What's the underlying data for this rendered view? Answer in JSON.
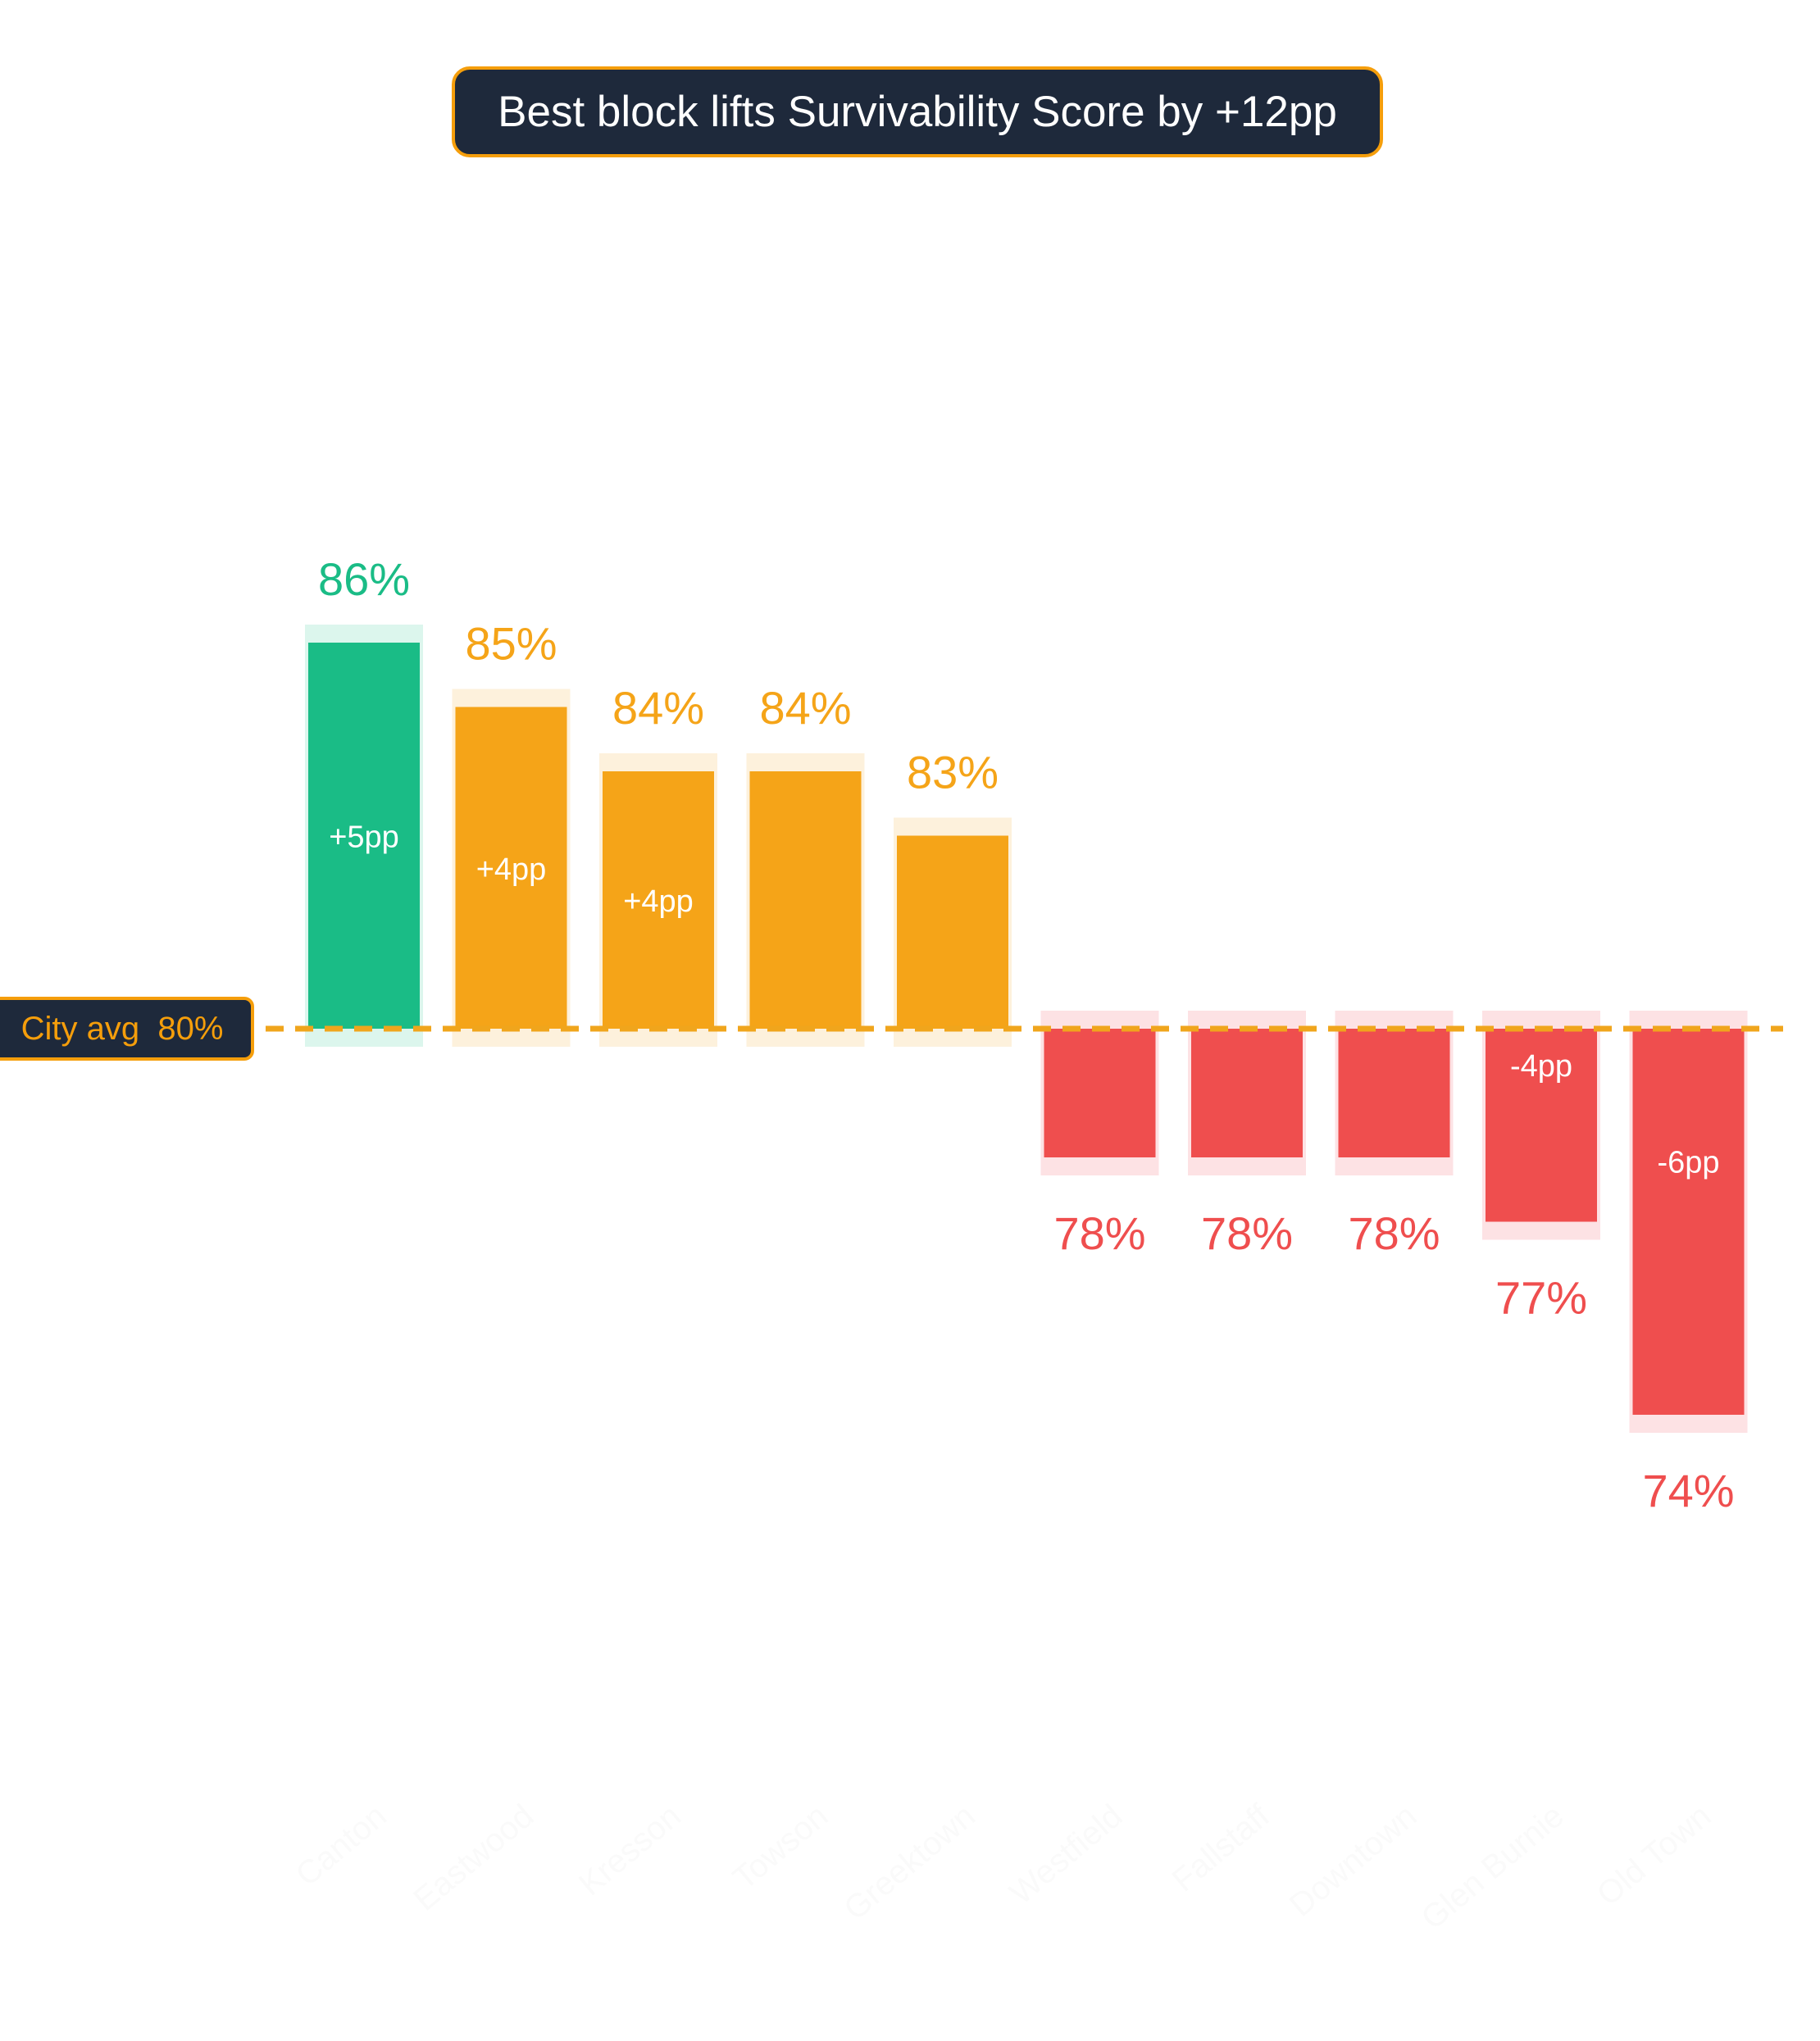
{
  "title": "Best block lifts Survivability Score by +12pp",
  "avg_label": "City avg  80%",
  "colors": {
    "top": "#1abc86",
    "top_bg": "#dcf6ed",
    "above": "#f5a418",
    "above_bg": "#fdf1dc",
    "below": "#ef4e4e",
    "below_bg": "#fde2e4",
    "avg_line": "#f0a51c",
    "xlabel": "#fafafa"
  },
  "chart_data": {
    "type": "bar",
    "title": "Best block lifts Survivability Score by +12pp",
    "categories": [
      "Canton",
      "Eastwood",
      "Kresson",
      "Towson",
      "Greektown",
      "Westfield",
      "Fallstaff",
      "Downtown",
      "Glen Burnie",
      "Old Town"
    ],
    "values": [
      86,
      85,
      84,
      84,
      83,
      78,
      78,
      78,
      77,
      74
    ],
    "value_labels": [
      "86%",
      "85%",
      "84%",
      "84%",
      "83%",
      "78%",
      "78%",
      "78%",
      "77%",
      "74%"
    ],
    "delta_labels": [
      "+5pp",
      "+4pp",
      "+4pp",
      "",
      "",
      "",
      "",
      "",
      "-4pp",
      "-6pp"
    ],
    "reference_line": {
      "label": "City avg  80%",
      "value": 80
    },
    "bar_baseline": 80,
    "grid": false,
    "legend": "none"
  }
}
